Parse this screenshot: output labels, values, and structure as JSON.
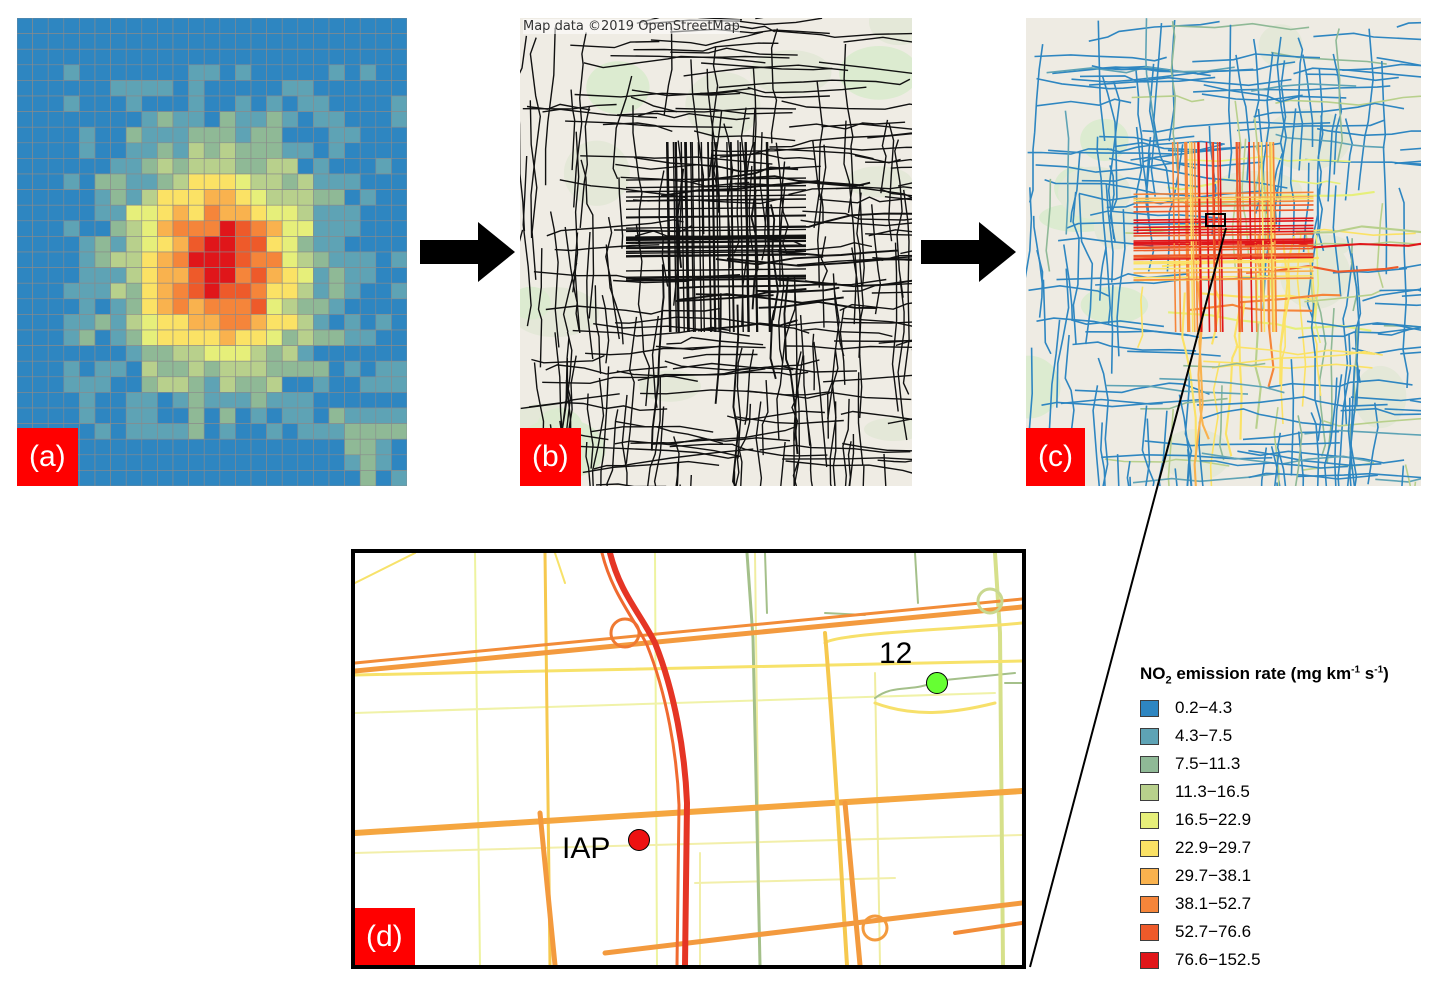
{
  "panels": {
    "a": {
      "label": "(a)"
    },
    "b": {
      "label": "(b)",
      "attribution": "Map data ©2019 OpenStreetMap"
    },
    "c": {
      "label": "(c)"
    },
    "d": {
      "label": "(d)"
    }
  },
  "sites": [
    {
      "label": "12",
      "color": "#66ff33"
    },
    {
      "label": "IAP",
      "color": "#ee1111"
    }
  ],
  "legend": {
    "title_pre": "NO",
    "title_sub": "2",
    "title_mid": " emission rate (mg km",
    "title_sup1": "-1",
    "title_mid2": " s",
    "title_sup2": "-1",
    "title_post": ")",
    "classes": [
      {
        "label": "0.2−4.3",
        "color": "#2e86c1"
      },
      {
        "label": "4.3−7.5",
        "color": "#5ea3b5"
      },
      {
        "label": "7.5−11.3",
        "color": "#8fb996"
      },
      {
        "label": "11.3−16.5",
        "color": "#b8d08c"
      },
      {
        "label": "16.5−22.9",
        "color": "#e6ef7a"
      },
      {
        "label": "22.9−29.7",
        "color": "#fbe265"
      },
      {
        "label": "29.7−38.1",
        "color": "#f9b24e"
      },
      {
        "label": "38.1−52.7",
        "color": "#f5853a"
      },
      {
        "label": "52.7−76.6",
        "color": "#ee5a2a"
      },
      {
        "label": "76.6−152.5",
        "color": "#e0161a"
      }
    ]
  }
}
